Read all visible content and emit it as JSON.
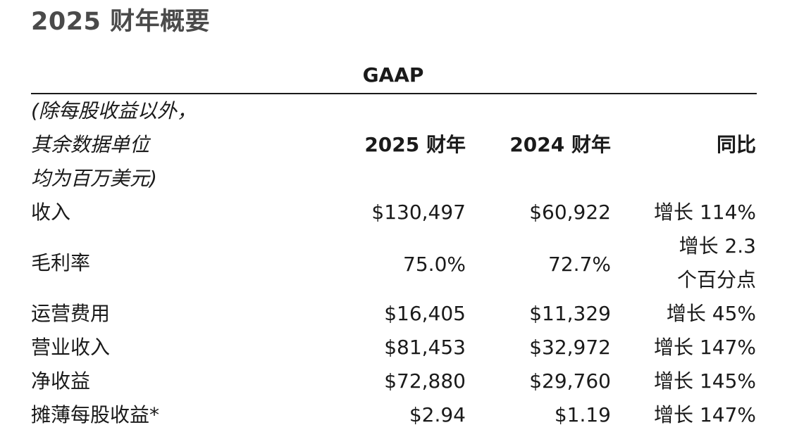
{
  "title": "2025 财年概要",
  "gaap_label": "GAAP",
  "note_lines": [
    "(除每股收益以外，",
    "其余数据单位",
    "均为百万美元)"
  ],
  "headers": {
    "fy2025": "2025 财年",
    "fy2024": "2024 财年",
    "yoy": "同比"
  },
  "rows": [
    {
      "label": "收入",
      "fy2025": "$130,497",
      "fy2024": "$60,922",
      "yoy": "增长 114%"
    },
    {
      "label": "毛利率",
      "fy2025": "75.0%",
      "fy2024": "72.7%",
      "yoy_line1": "增长 2.3",
      "yoy_line2": "个百分点"
    },
    {
      "label": "运营费用",
      "fy2025": "$16,405",
      "fy2024": "$11,329",
      "yoy": "增长 45%"
    },
    {
      "label": "营业收入",
      "fy2025": "$81,453",
      "fy2024": "$32,972",
      "yoy": "增长 147%"
    },
    {
      "label": "净收益",
      "fy2025": "$72,880",
      "fy2024": "$29,760",
      "yoy": "增长 145%"
    },
    {
      "label": "摊薄每股收益*",
      "fy2025": "$2.94",
      "fy2024": "$1.19",
      "yoy": "增长 147%"
    }
  ]
}
